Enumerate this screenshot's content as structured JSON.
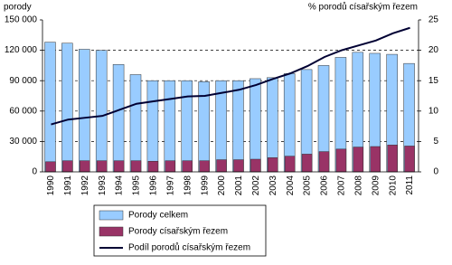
{
  "chart_data": {
    "type": "bar",
    "y_label": "porody",
    "y2_label": "% porodů císařským řezem",
    "categories": [
      "1990",
      "1991",
      "1992",
      "1993",
      "1994",
      "1995",
      "1996",
      "1997",
      "1998",
      "1999",
      "2000",
      "2001",
      "2002",
      "2003",
      "2004",
      "2005",
      "2006",
      "2007",
      "2008",
      "2009",
      "2010",
      "2011"
    ],
    "series": [
      {
        "name": "Porody celkem",
        "color": "#99ccff",
        "values": [
          128000,
          127000,
          121000,
          120000,
          106000,
          96000,
          90000,
          90000,
          90000,
          89000,
          90000,
          90000,
          92000,
          93000,
          97000,
          101000,
          105000,
          113000,
          118000,
          117000,
          116000,
          107000
        ]
      },
      {
        "name": "Porody císařským řezem",
        "color": "#993366",
        "values": [
          10000,
          11000,
          11000,
          11000,
          11000,
          11000,
          10500,
          11000,
          11000,
          11000,
          12000,
          12000,
          12500,
          14000,
          15500,
          17500,
          20000,
          22500,
          24500,
          25000,
          26500,
          25500
        ]
      },
      {
        "name": "Podíl porodů císařským řezem",
        "type": "line",
        "axis": "y2",
        "color": "#000033",
        "values": [
          7.8,
          8.6,
          8.9,
          9.2,
          10.2,
          11.2,
          11.6,
          12.0,
          12.4,
          12.5,
          13.0,
          13.5,
          14.3,
          15.3,
          16.2,
          17.4,
          18.9,
          20.0,
          20.8,
          21.6,
          22.8,
          23.7
        ]
      }
    ],
    "ylim": [
      0,
      150000
    ],
    "yticks": [
      0,
      {
        "value": 30000,
        "label": "30 000"
      },
      {
        "value": 60000,
        "label": "60 000"
      },
      {
        "value": 90000,
        "label": "90 000"
      },
      {
        "value": 120000,
        "label": "120 000"
      },
      {
        "value": 150000,
        "label": "150 000"
      }
    ],
    "y2lim": [
      0,
      25
    ],
    "y2ticks": [
      0,
      5,
      10,
      15,
      20,
      25
    ],
    "grid": true
  }
}
